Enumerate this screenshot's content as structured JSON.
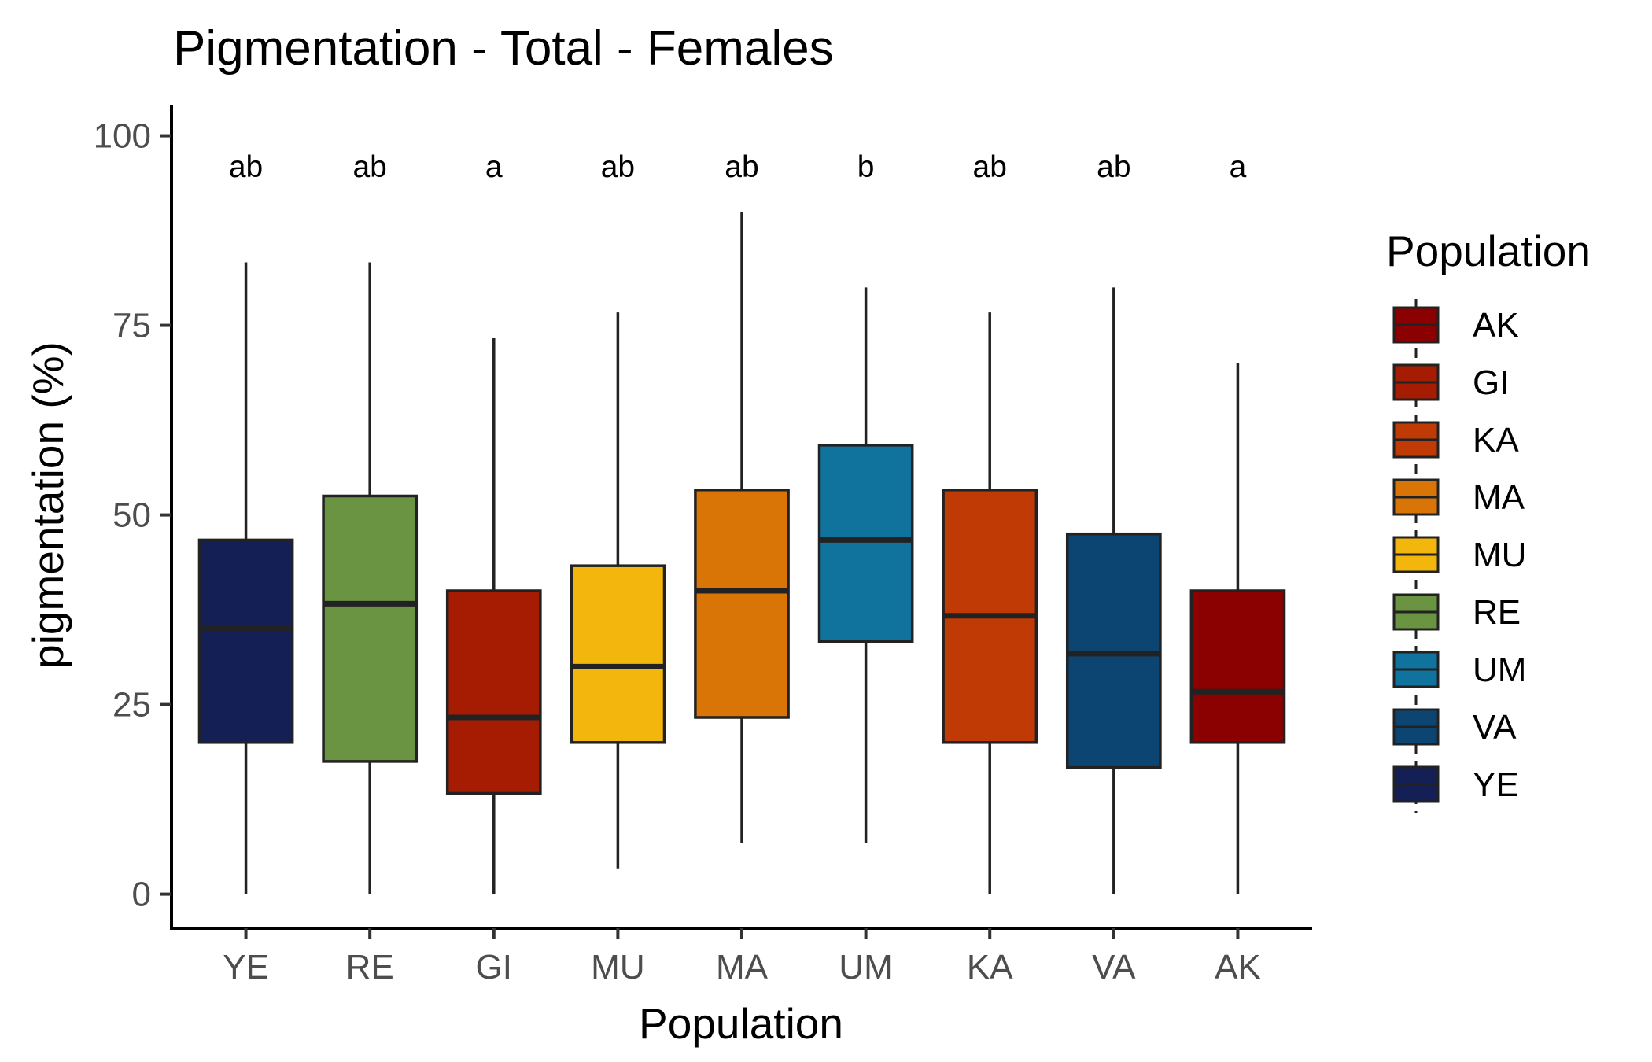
{
  "chart_data": {
    "type": "boxplot",
    "title": "Pigmentation - Total - Females",
    "xlabel": "Population",
    "ylabel": "pigmentation (%)",
    "ylim": [
      -4.5,
      104
    ],
    "yticks": [
      0,
      25,
      50,
      75,
      100
    ],
    "grid": false,
    "legend": {
      "title": "Population",
      "position": "right",
      "entries": [
        "AK",
        "GI",
        "KA",
        "MA",
        "MU",
        "RE",
        "UM",
        "VA",
        "YE"
      ]
    },
    "categories": [
      "YE",
      "RE",
      "GI",
      "MU",
      "MA",
      "UM",
      "KA",
      "VA",
      "AK"
    ],
    "colors": {
      "AK": "#8b0000",
      "GI": "#a61c03",
      "KA": "#c03a05",
      "MA": "#d97506",
      "MU": "#f2b60c",
      "RE": "#6a9441",
      "UM": "#10739e",
      "VA": "#0c4571",
      "YE": "#131f55"
    },
    "boxes": [
      {
        "group": "YE",
        "min": 0,
        "q1": 20,
        "median": 35,
        "q3": 46.7,
        "max": 83.3,
        "letter": "ab"
      },
      {
        "group": "RE",
        "min": 0,
        "q1": 17.5,
        "median": 38.3,
        "q3": 52.5,
        "max": 83.3,
        "letter": "ab"
      },
      {
        "group": "GI",
        "min": 0,
        "q1": 13.3,
        "median": 23.3,
        "q3": 40,
        "max": 73.3,
        "letter": "a"
      },
      {
        "group": "MU",
        "min": 3.3,
        "q1": 20,
        "median": 30,
        "q3": 43.3,
        "max": 76.7,
        "letter": "ab"
      },
      {
        "group": "MA",
        "min": 6.7,
        "q1": 23.3,
        "median": 40,
        "q3": 53.3,
        "max": 90,
        "letter": "ab"
      },
      {
        "group": "UM",
        "min": 6.7,
        "q1": 33.3,
        "median": 46.7,
        "q3": 59.2,
        "max": 80,
        "letter": "b"
      },
      {
        "group": "KA",
        "min": 0,
        "q1": 20,
        "median": 36.7,
        "q3": 53.3,
        "max": 76.7,
        "letter": "ab"
      },
      {
        "group": "VA",
        "min": 0,
        "q1": 16.7,
        "median": 31.7,
        "q3": 47.5,
        "max": 80,
        "letter": "ab"
      },
      {
        "group": "AK",
        "min": 0,
        "q1": 20,
        "median": 26.7,
        "q3": 40,
        "max": 70,
        "letter": "a"
      }
    ],
    "letters_y": 96
  }
}
